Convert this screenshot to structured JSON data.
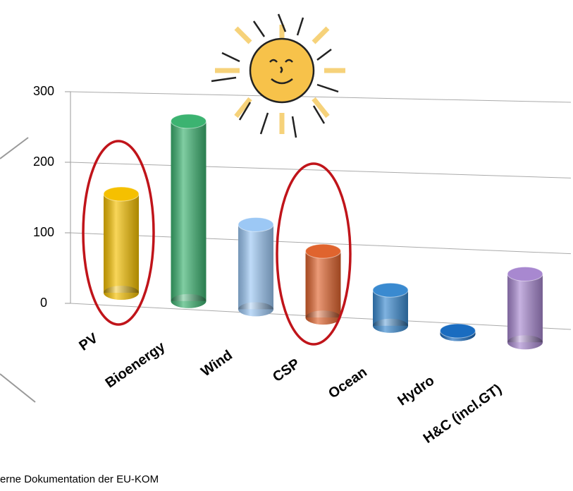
{
  "chart_data": {
    "type": "bar3d",
    "categories": [
      "PV",
      "Bioenergy",
      "Wind",
      "CSP",
      "Ocean",
      "Hydro",
      "H&C (incl.GT)"
    ],
    "values": [
      140,
      260,
      125,
      100,
      55,
      5,
      110
    ],
    "colors": [
      "#f5c000",
      "#3cb371",
      "#9cc8f5",
      "#e0642e",
      "#3a8ad0",
      "#1a6cc0",
      "#a888d0"
    ],
    "ylim": [
      0,
      300
    ],
    "yticks": [
      0,
      100,
      200,
      300
    ],
    "grid": true
  },
  "source": "erne Dokumentation der EU-KOM"
}
